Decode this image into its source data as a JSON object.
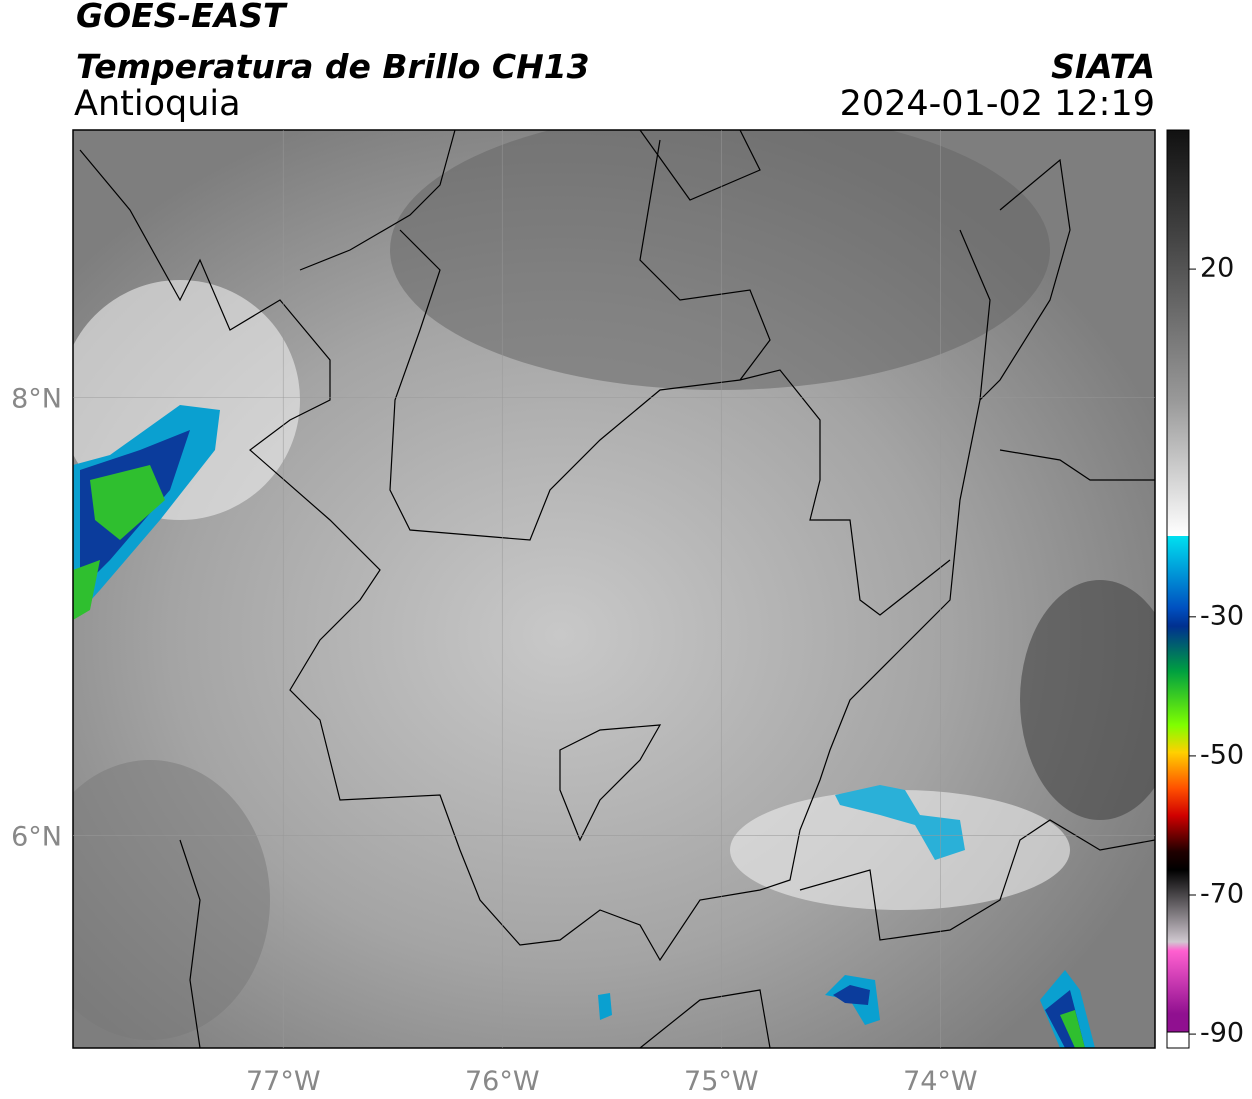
{
  "header": {
    "title": "GOES-EAST",
    "subtitle": "Temperatura de Brillo CH13",
    "region": "Antioquia",
    "source": "SIATA",
    "datetime": "2024-01-02 12:19"
  },
  "map": {
    "xlim": [
      -77.96,
      -73.02
    ],
    "ylim": [
      5.03,
      9.22
    ],
    "xticks": [
      {
        "value": -77,
        "label": "77°W"
      },
      {
        "value": -76,
        "label": "76°W"
      },
      {
        "value": -75,
        "label": "75°W"
      },
      {
        "value": -74,
        "label": "74°W"
      }
    ],
    "yticks": [
      {
        "value": 6,
        "label": "6°N"
      },
      {
        "value": 8,
        "label": "8°N"
      }
    ],
    "grid": true
  },
  "colorbar": {
    "lim": [
      -92,
      40
    ],
    "ticks": [
      20,
      -30,
      -50,
      -70,
      -90
    ]
  }
}
